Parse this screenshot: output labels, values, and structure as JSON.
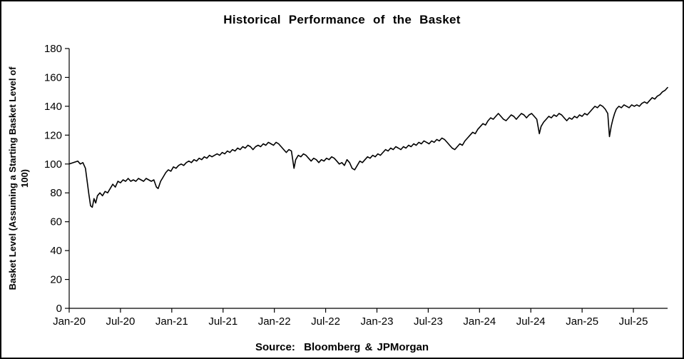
{
  "title": "Historical Performance of the Basket",
  "source": "Source:  Bloomberg & JPMorgan",
  "chart_data": {
    "type": "line",
    "title": "Historical Performance of the Basket",
    "xlabel": "",
    "ylabel": "Basket Level (Assuming a Starting Basket Level of 100)",
    "ylim": [
      0,
      180
    ],
    "y_ticks": [
      0,
      20,
      40,
      60,
      80,
      100,
      120,
      140,
      160,
      180
    ],
    "x_tick_labels": [
      "Jan-20",
      "Jul-20",
      "Jan-21",
      "Jul-21",
      "Jan-22",
      "Jul-22",
      "Jan-23",
      "Jul-23",
      "Jan-24",
      "Jul-24",
      "Jan-25",
      "Jul-25"
    ],
    "x_tick_positions_months": [
      0,
      6,
      12,
      18,
      24,
      30,
      36,
      42,
      48,
      54,
      60,
      66
    ],
    "x_range_months": [
      0,
      70
    ],
    "grid": false,
    "legend": "none",
    "line_color": "#000000",
    "background_color": "#ffffff",
    "series": [
      {
        "name": "Basket Level",
        "points": [
          [
            0,
            100
          ],
          [
            0.5,
            101
          ],
          [
            1,
            102
          ],
          [
            1.3,
            100
          ],
          [
            1.6,
            101
          ],
          [
            1.9,
            97
          ],
          [
            2.1,
            88
          ],
          [
            2.3,
            79
          ],
          [
            2.5,
            71
          ],
          [
            2.7,
            70
          ],
          [
            2.9,
            76
          ],
          [
            3.1,
            73
          ],
          [
            3.3,
            78
          ],
          [
            3.6,
            80
          ],
          [
            3.9,
            78
          ],
          [
            4.2,
            81
          ],
          [
            4.5,
            80
          ],
          [
            4.8,
            83
          ],
          [
            5.1,
            86
          ],
          [
            5.4,
            84
          ],
          [
            5.7,
            88
          ],
          [
            6,
            87
          ],
          [
            6.3,
            89
          ],
          [
            6.6,
            88
          ],
          [
            6.9,
            90
          ],
          [
            7.2,
            88
          ],
          [
            7.5,
            89
          ],
          [
            7.8,
            88
          ],
          [
            8.1,
            90
          ],
          [
            8.4,
            89
          ],
          [
            8.7,
            88
          ],
          [
            9,
            90
          ],
          [
            9.3,
            89
          ],
          [
            9.6,
            88
          ],
          [
            9.9,
            89
          ],
          [
            10.2,
            84
          ],
          [
            10.4,
            83
          ],
          [
            10.7,
            88
          ],
          [
            11,
            91
          ],
          [
            11.3,
            94
          ],
          [
            11.6,
            96
          ],
          [
            11.9,
            95
          ],
          [
            12.2,
            98
          ],
          [
            12.5,
            97
          ],
          [
            12.8,
            99
          ],
          [
            13.1,
            100
          ],
          [
            13.4,
            99
          ],
          [
            13.7,
            101
          ],
          [
            14,
            102
          ],
          [
            14.3,
            101
          ],
          [
            14.6,
            103
          ],
          [
            14.9,
            102
          ],
          [
            15.2,
            104
          ],
          [
            15.5,
            103
          ],
          [
            15.8,
            105
          ],
          [
            16.1,
            104
          ],
          [
            16.4,
            106
          ],
          [
            16.7,
            105
          ],
          [
            17,
            106
          ],
          [
            17.3,
            107
          ],
          [
            17.6,
            106
          ],
          [
            17.9,
            108
          ],
          [
            18.2,
            107
          ],
          [
            18.5,
            109
          ],
          [
            18.8,
            108
          ],
          [
            19.1,
            110
          ],
          [
            19.4,
            109
          ],
          [
            19.7,
            111
          ],
          [
            20,
            110
          ],
          [
            20.3,
            112
          ],
          [
            20.6,
            111
          ],
          [
            20.9,
            113
          ],
          [
            21.2,
            112
          ],
          [
            21.5,
            110
          ],
          [
            21.8,
            112
          ],
          [
            22.1,
            113
          ],
          [
            22.4,
            112
          ],
          [
            22.7,
            114
          ],
          [
            23,
            113
          ],
          [
            23.3,
            115
          ],
          [
            23.6,
            114
          ],
          [
            23.9,
            113
          ],
          [
            24.2,
            115
          ],
          [
            24.5,
            114
          ],
          [
            24.8,
            112
          ],
          [
            25.1,
            110
          ],
          [
            25.4,
            108
          ],
          [
            25.7,
            110
          ],
          [
            26,
            109
          ],
          [
            26.3,
            97
          ],
          [
            26.5,
            103
          ],
          [
            26.8,
            106
          ],
          [
            27.1,
            105
          ],
          [
            27.4,
            107
          ],
          [
            27.7,
            106
          ],
          [
            28,
            104
          ],
          [
            28.3,
            102
          ],
          [
            28.6,
            104
          ],
          [
            28.9,
            103
          ],
          [
            29.2,
            101
          ],
          [
            29.5,
            103
          ],
          [
            29.8,
            102
          ],
          [
            30.1,
            104
          ],
          [
            30.4,
            103
          ],
          [
            30.7,
            105
          ],
          [
            31,
            104
          ],
          [
            31.3,
            102
          ],
          [
            31.6,
            100
          ],
          [
            31.9,
            101
          ],
          [
            32.2,
            99
          ],
          [
            32.5,
            103
          ],
          [
            32.8,
            101
          ],
          [
            33.1,
            97
          ],
          [
            33.4,
            96
          ],
          [
            33.7,
            99
          ],
          [
            34,
            102
          ],
          [
            34.3,
            101
          ],
          [
            34.6,
            103
          ],
          [
            34.9,
            105
          ],
          [
            35.2,
            104
          ],
          [
            35.5,
            106
          ],
          [
            35.8,
            105
          ],
          [
            36.1,
            107
          ],
          [
            36.4,
            106
          ],
          [
            36.7,
            108
          ],
          [
            37,
            110
          ],
          [
            37.3,
            109
          ],
          [
            37.6,
            111
          ],
          [
            37.9,
            110
          ],
          [
            38.2,
            112
          ],
          [
            38.5,
            111
          ],
          [
            38.8,
            110
          ],
          [
            39.1,
            112
          ],
          [
            39.4,
            111
          ],
          [
            39.7,
            113
          ],
          [
            40,
            112
          ],
          [
            40.3,
            114
          ],
          [
            40.6,
            113
          ],
          [
            40.9,
            115
          ],
          [
            41.2,
            114
          ],
          [
            41.5,
            116
          ],
          [
            41.8,
            115
          ],
          [
            42.1,
            114
          ],
          [
            42.4,
            116
          ],
          [
            42.7,
            115
          ],
          [
            43,
            117
          ],
          [
            43.3,
            116
          ],
          [
            43.6,
            118
          ],
          [
            43.9,
            117
          ],
          [
            44.2,
            115
          ],
          [
            44.5,
            113
          ],
          [
            44.8,
            111
          ],
          [
            45.1,
            110
          ],
          [
            45.4,
            112
          ],
          [
            45.7,
            114
          ],
          [
            46,
            113
          ],
          [
            46.3,
            116
          ],
          [
            46.6,
            118
          ],
          [
            46.9,
            120
          ],
          [
            47.2,
            122
          ],
          [
            47.5,
            121
          ],
          [
            47.8,
            124
          ],
          [
            48.1,
            126
          ],
          [
            48.4,
            128
          ],
          [
            48.7,
            127
          ],
          [
            49,
            130
          ],
          [
            49.3,
            132
          ],
          [
            49.6,
            131
          ],
          [
            49.9,
            133
          ],
          [
            50.2,
            135
          ],
          [
            50.5,
            133
          ],
          [
            50.8,
            131
          ],
          [
            51.1,
            130
          ],
          [
            51.4,
            132
          ],
          [
            51.7,
            134
          ],
          [
            52,
            133
          ],
          [
            52.3,
            131
          ],
          [
            52.6,
            133
          ],
          [
            52.9,
            135
          ],
          [
            53.2,
            134
          ],
          [
            53.5,
            132
          ],
          [
            53.8,
            134
          ],
          [
            54.1,
            135
          ],
          [
            54.4,
            133
          ],
          [
            54.7,
            131
          ],
          [
            55,
            121
          ],
          [
            55.2,
            126
          ],
          [
            55.5,
            129
          ],
          [
            55.8,
            131
          ],
          [
            56.1,
            133
          ],
          [
            56.4,
            132
          ],
          [
            56.7,
            134
          ],
          [
            57,
            133
          ],
          [
            57.3,
            135
          ],
          [
            57.6,
            134
          ],
          [
            57.9,
            132
          ],
          [
            58.2,
            130
          ],
          [
            58.5,
            132
          ],
          [
            58.8,
            131
          ],
          [
            59.1,
            133
          ],
          [
            59.4,
            132
          ],
          [
            59.7,
            134
          ],
          [
            60,
            133
          ],
          [
            60.3,
            135
          ],
          [
            60.6,
            134
          ],
          [
            60.9,
            136
          ],
          [
            61.2,
            138
          ],
          [
            61.5,
            140
          ],
          [
            61.8,
            139
          ],
          [
            62.1,
            141
          ],
          [
            62.4,
            140
          ],
          [
            62.7,
            138
          ],
          [
            63,
            135
          ],
          [
            63.2,
            119
          ],
          [
            63.4,
            126
          ],
          [
            63.6,
            131
          ],
          [
            63.8,
            135
          ],
          [
            64,
            138
          ],
          [
            64.3,
            140
          ],
          [
            64.6,
            139
          ],
          [
            64.9,
            141
          ],
          [
            65.2,
            140
          ],
          [
            65.5,
            139
          ],
          [
            65.8,
            141
          ],
          [
            66.1,
            140
          ],
          [
            66.4,
            141
          ],
          [
            66.7,
            140
          ],
          [
            67,
            142
          ],
          [
            67.3,
            143
          ],
          [
            67.6,
            142
          ],
          [
            67.9,
            144
          ],
          [
            68.2,
            146
          ],
          [
            68.5,
            145
          ],
          [
            68.8,
            147
          ],
          [
            69.1,
            148
          ],
          [
            69.4,
            150
          ],
          [
            69.7,
            151
          ],
          [
            70,
            153
          ]
        ]
      }
    ]
  }
}
